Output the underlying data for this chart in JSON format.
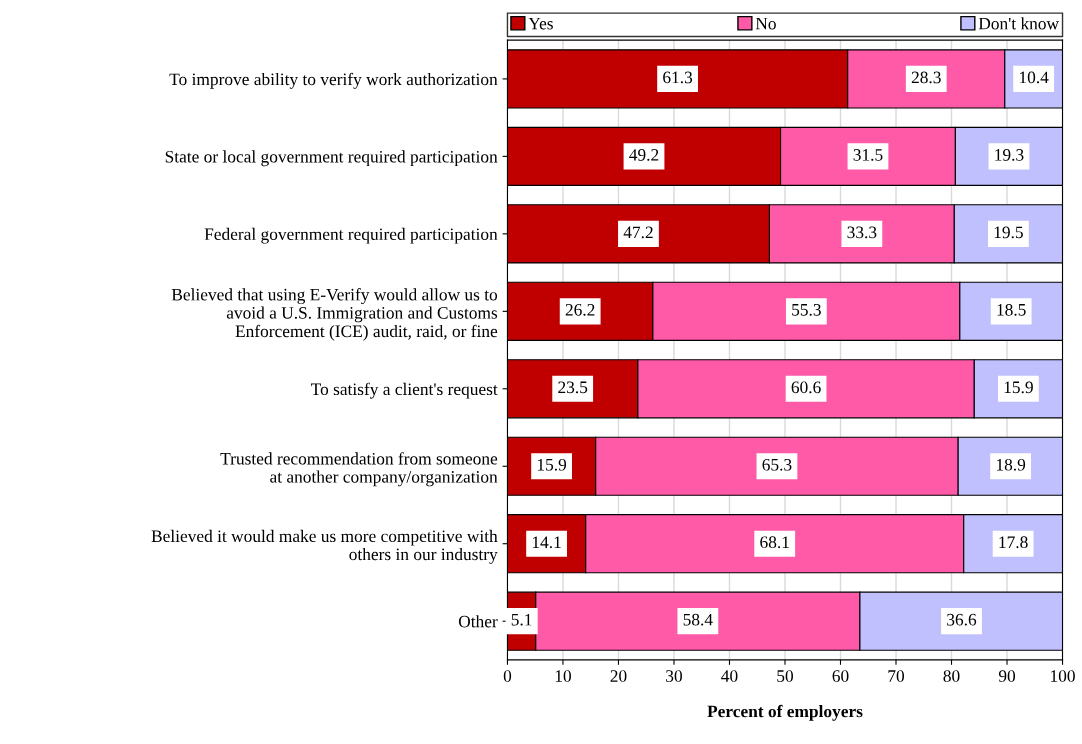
{
  "chart_data": {
    "type": "bar",
    "orientation": "horizontal",
    "stacked": true,
    "xlabel": "Percent of employers",
    "categories": [
      "To improve ability to verify work authorization",
      "State or local government required participation",
      "Federal government required participation",
      "Believed that using E-Verify would allow us to\navoid a U.S. Immigration and Customs\nEnforcement (ICE) audit, raid, or fine",
      "To satisfy a client's request",
      "Trusted recommendation from someone\nat another company/organization",
      "Believed it would make us more competitive with\nothers in our industry",
      "Other"
    ],
    "series": [
      {
        "name": "Yes",
        "color": "#c00000",
        "values": [
          61.3,
          49.2,
          47.2,
          26.2,
          23.5,
          15.9,
          14.1,
          5.1
        ]
      },
      {
        "name": "No",
        "color": "#ff5aa8",
        "values": [
          28.3,
          31.5,
          33.3,
          55.3,
          60.6,
          65.3,
          68.1,
          58.4
        ]
      },
      {
        "name": "Don't know",
        "color": "#c0c0ff",
        "values": [
          10.4,
          19.3,
          19.5,
          18.5,
          15.9,
          18.9,
          17.8,
          36.6
        ]
      }
    ],
    "xlim": [
      0,
      100
    ],
    "xticks": [
      0,
      10,
      20,
      30,
      40,
      50,
      60,
      70,
      80,
      90,
      100
    ],
    "grid": "x",
    "legend": "top",
    "data_labels": true
  }
}
